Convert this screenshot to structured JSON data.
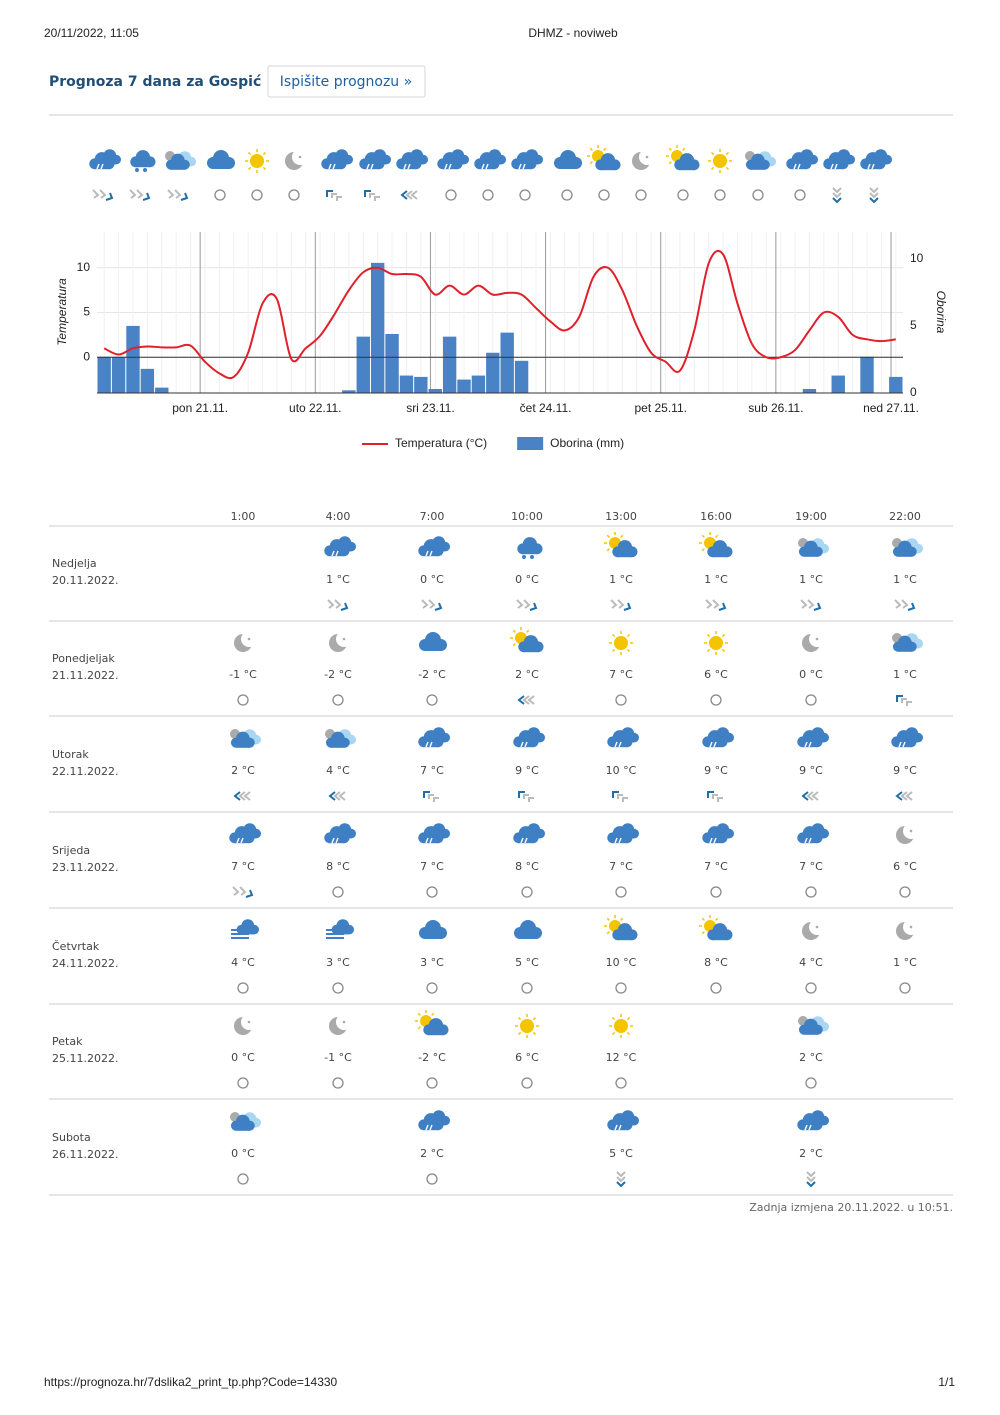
{
  "header": {
    "datetime": "20/11/2022, 11:05",
    "title": "DHMZ - noviweb"
  },
  "page": {
    "title": "Prognoza 7 dana za Gospić",
    "print_button": "Ispišite prognozu »"
  },
  "chart_data": {
    "type": "combo",
    "x": [
      4,
      7,
      10,
      13,
      16,
      19,
      22,
      25,
      28,
      31,
      34,
      37,
      40,
      43,
      46,
      49,
      52,
      55,
      58,
      61,
      64,
      67,
      70,
      73,
      76,
      79,
      82,
      85,
      88,
      91,
      94,
      97,
      100,
      103,
      106,
      109,
      112,
      115,
      118,
      121,
      124,
      127,
      130,
      133,
      136,
      139,
      142,
      145,
      148,
      151,
      154,
      157,
      160,
      163,
      166,
      169
    ],
    "xlim": [
      2.5,
      170.5
    ],
    "xticks": [
      {
        "value": 24,
        "label": "pon 21.11."
      },
      {
        "value": 48,
        "label": "uto 22.11."
      },
      {
        "value": 72,
        "label": "sri 23.11."
      },
      {
        "value": 96,
        "label": "čet 24.11."
      },
      {
        "value": 120,
        "label": "pet 25.11."
      },
      {
        "value": 144,
        "label": "sub 26.11."
      },
      {
        "value": 168,
        "label": "ned 27.11."
      }
    ],
    "ylabel": "Temperatura",
    "ylim": [
      -4,
      14
    ],
    "yticks": [
      0,
      5,
      10
    ],
    "y2label": "Oborina",
    "y2lim": [
      0,
      12
    ],
    "y2ticks": [
      0,
      5,
      10
    ],
    "series": [
      {
        "name": "Temperatura (°C)",
        "type": "line",
        "color": "#e0202a",
        "values": [
          1.0,
          0.3,
          1.0,
          1.2,
          1.1,
          1.1,
          1.3,
          -0.5,
          -1.8,
          -2.2,
          0.5,
          6.0,
          6.5,
          -0.2,
          1.0,
          2.4,
          4.8,
          7.5,
          9.5,
          10.0,
          9.3,
          9.3,
          9.0,
          7.0,
          8.0,
          7.0,
          8.0,
          7.0,
          7.2,
          7.0,
          5.5,
          4.0,
          3.0,
          4.5,
          9.0,
          10.0,
          7.5,
          3.5,
          0.5,
          -0.5,
          -1.5,
          3.0,
          10.5,
          11.5,
          6.0,
          1.5,
          0.0,
          0.0,
          0.8,
          3.0,
          5.0,
          4.5,
          2.5,
          2.0,
          1.8,
          2.0
        ]
      },
      {
        "name": "Oborina (mm)",
        "type": "bar",
        "axis": "y2",
        "color": "#4a82c6",
        "values": [
          2.7,
          2.7,
          5.0,
          1.8,
          0.4,
          0,
          0,
          0,
          0,
          0,
          0,
          0,
          0,
          0,
          0,
          0,
          0,
          0.2,
          4.2,
          9.7,
          4.4,
          1.3,
          1.2,
          0.3,
          4.2,
          1.0,
          1.3,
          3.0,
          4.5,
          2.4,
          0,
          0,
          0,
          0,
          0,
          0,
          0,
          0,
          0,
          0,
          0,
          0,
          0,
          0,
          0,
          0,
          0,
          0,
          0,
          0.3,
          0,
          1.3,
          0,
          2.7,
          0,
          1.2
        ]
      }
    ]
  },
  "table": {
    "hours": [
      "1:00",
      "4:00",
      "7:00",
      "10:00",
      "13:00",
      "16:00",
      "19:00",
      "22:00"
    ],
    "rows": [
      {
        "day": "Nedjelja",
        "date": "20.11.2022.",
        "temps": [
          null,
          "1 °C",
          "0 °C",
          "0 °C",
          "1 °C",
          "1 °C",
          "1 °C",
          "1 °C"
        ]
      },
      {
        "day": "Ponedjeljak",
        "date": "21.11.2022.",
        "temps": [
          "-1 °C",
          "-2 °C",
          "-2 °C",
          "2 °C",
          "7 °C",
          "6 °C",
          "0 °C",
          "1 °C"
        ]
      },
      {
        "day": "Utorak",
        "date": "22.11.2022.",
        "temps": [
          "2 °C",
          "4 °C",
          "7 °C",
          "9 °C",
          "10 °C",
          "9 °C",
          "9 °C",
          "9 °C"
        ]
      },
      {
        "day": "Srijeda",
        "date": "23.11.2022.",
        "temps": [
          "7 °C",
          "8 °C",
          "7 °C",
          "8 °C",
          "7 °C",
          "7 °C",
          "7 °C",
          "6 °C"
        ]
      },
      {
        "day": "Četvrtak",
        "date": "24.11.2022.",
        "temps": [
          "4 °C",
          "3 °C",
          "3 °C",
          "5 °C",
          "10 °C",
          "8 °C",
          "4 °C",
          "1 °C"
        ]
      },
      {
        "day": "Petak",
        "date": "25.11.2022.",
        "temps": [
          "0 °C",
          "-1 °C",
          "-2 °C",
          "6 °C",
          "12 °C",
          null,
          "2 °C",
          null
        ]
      },
      {
        "day": "Subota",
        "date": "26.11.2022.",
        "temps": [
          "0 °C",
          null,
          "2 °C",
          null,
          "5 °C",
          null,
          "2 °C",
          null
        ]
      }
    ],
    "updated": "Zadnja izmjena 20.11.2022. u 10:51."
  },
  "footer": {
    "url": "https://prognoza.hr/7dslika2_print_tp.php?Code=14330",
    "page": "1/1"
  }
}
